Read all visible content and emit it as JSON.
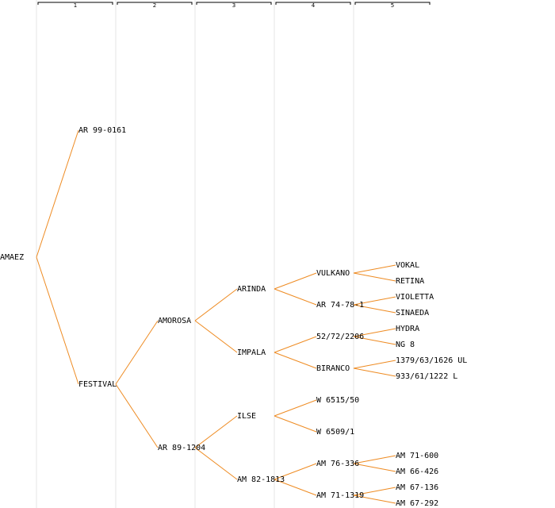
{
  "generations": [
    "1",
    "2",
    "3",
    "4",
    "5"
  ],
  "colors": {
    "edge": "#ee8b22",
    "grid": "#e6e6e6",
    "text": "#000000"
  },
  "pedigree": {
    "name": "AMAEZ",
    "parents": [
      {
        "name": "AR 99-0161",
        "parents": []
      },
      {
        "name": "FESTIVAL",
        "parents": [
          {
            "name": "AMOROSA",
            "parents": [
              {
                "name": "ARINDA",
                "parents": [
                  {
                    "name": "VULKANO",
                    "parents": [
                      {
                        "name": "VOKAL"
                      },
                      {
                        "name": "RETINA"
                      }
                    ]
                  },
                  {
                    "name": "AR 74-78-1",
                    "parents": [
                      {
                        "name": "VIOLETTA"
                      },
                      {
                        "name": "SINAEDA"
                      }
                    ]
                  }
                ]
              },
              {
                "name": "IMPALA",
                "parents": [
                  {
                    "name": "52/72/2206",
                    "parents": [
                      {
                        "name": "HYDRA"
                      },
                      {
                        "name": "NG 8"
                      }
                    ]
                  },
                  {
                    "name": "BIRANCO",
                    "parents": [
                      {
                        "name": "1379/63/1626 UL"
                      },
                      {
                        "name": "933/61/1222 L"
                      }
                    ]
                  }
                ]
              }
            ]
          },
          {
            "name": "AR 89-1204",
            "parents": [
              {
                "name": "ILSE",
                "parents": [
                  {
                    "name": "W 6515/50"
                  },
                  {
                    "name": "W 6509/1"
                  }
                ]
              },
              {
                "name": "AM 82-1813",
                "parents": [
                  {
                    "name": "AM 76-336",
                    "parents": [
                      {
                        "name": "AM 71-600"
                      },
                      {
                        "name": "AM 66-426"
                      }
                    ]
                  },
                  {
                    "name": "AM 71-1319",
                    "parents": [
                      {
                        "name": "AM 67-136"
                      },
                      {
                        "name": "AM 67-292"
                      }
                    ]
                  }
                ]
              }
            ]
          }
        ]
      }
    ]
  }
}
